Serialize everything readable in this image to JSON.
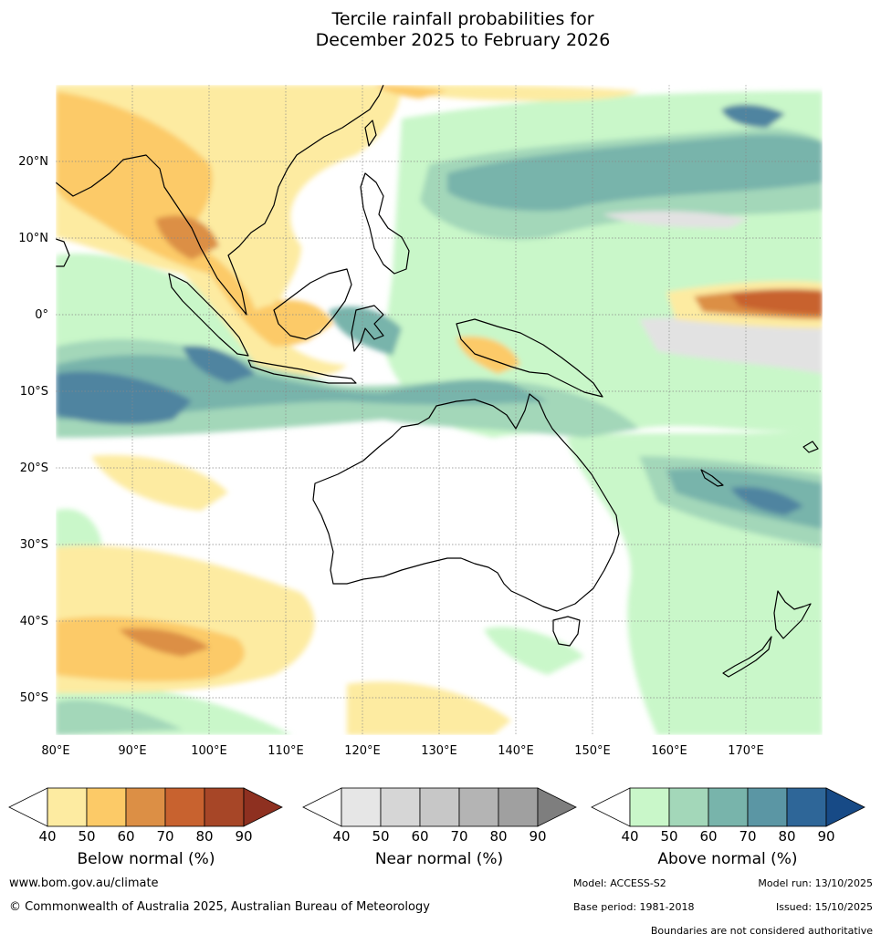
{
  "title": {
    "line1": "Tercile rainfall probabilities for",
    "line2": "December 2025 to February 2026"
  },
  "map": {
    "lon_range": [
      80,
      180
    ],
    "lat_range": [
      -55,
      30
    ],
    "lon_ticks": [
      "80°E",
      "90°E",
      "100°E",
      "110°E",
      "120°E",
      "130°E",
      "140°E",
      "150°E",
      "160°E",
      "170°E"
    ],
    "lat_ticks": [
      "20°N",
      "10°N",
      "0°",
      "10°S",
      "20°S",
      "30°S",
      "40°S",
      "50°S"
    ]
  },
  "colorbars": {
    "below": {
      "label": "Below normal (%)",
      "ticks": [
        "40",
        "50",
        "60",
        "70",
        "80",
        "90"
      ],
      "colors": [
        "#ffffff",
        "#fdeba1",
        "#fcca67",
        "#dc8f45",
        "#c8622f",
        "#a74627",
        "#8e3020"
      ]
    },
    "near": {
      "label": "Near normal (%)",
      "ticks": [
        "40",
        "50",
        "60",
        "70",
        "80",
        "90"
      ],
      "colors": [
        "#ffffff",
        "#e6e6e6",
        "#d6d6d6",
        "#c7c7c7",
        "#b4b4b4",
        "#a0a0a0",
        "#7e7e7e"
      ]
    },
    "above": {
      "label": "Above normal (%)",
      "ticks": [
        "40",
        "50",
        "60",
        "70",
        "80",
        "90"
      ],
      "colors": [
        "#ffffff",
        "#c9f7c9",
        "#a3d7b9",
        "#78b4ab",
        "#5b96a4",
        "#2e6698",
        "#174a86"
      ]
    }
  },
  "footer": {
    "website": "www.bom.gov.au/climate",
    "copyright": "© Commonwealth of Australia 2025, Australian Bureau of Meteorology",
    "model": "Model: ACCESS-S2",
    "model_run": "Model run: 13/10/2025",
    "base_period": "Base period: 1981-2018",
    "issued": "Issued: 15/10/2025",
    "disclaimer": "Boundaries are not considered authoritative"
  }
}
